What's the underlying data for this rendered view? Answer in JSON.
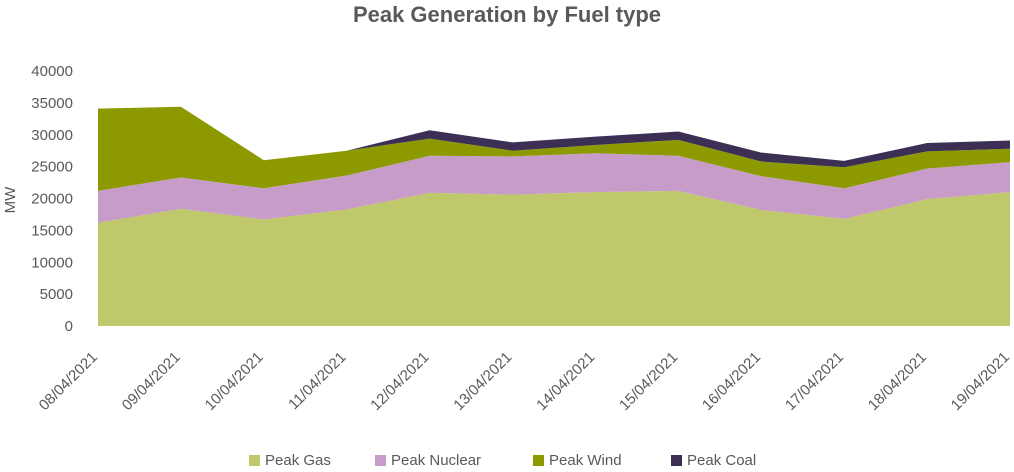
{
  "chart_data": {
    "type": "area",
    "stacked": true,
    "title": "Peak Generation by Fuel type",
    "xlabel": "",
    "ylabel": "MW",
    "ylim": [
      0,
      40000
    ],
    "yticks": [
      0,
      5000,
      10000,
      15000,
      20000,
      25000,
      30000,
      35000,
      40000
    ],
    "categories": [
      "08/04/2021",
      "09/04/2021",
      "10/04/2021",
      "11/04/2021",
      "12/04/2021",
      "13/04/2021",
      "14/04/2021",
      "15/04/2021",
      "16/04/2021",
      "17/04/2021",
      "18/04/2021",
      "19/04/2021"
    ],
    "grid": false,
    "legend_position": "bottom",
    "series": [
      {
        "name": "Peak Gas",
        "color": "#bfc86a",
        "values": [
          16200,
          18400,
          16700,
          18300,
          20900,
          20600,
          21000,
          21200,
          18200,
          16800,
          19900,
          21000
        ]
      },
      {
        "name": "Peak Nuclear",
        "color": "#c79cc8",
        "values": [
          5000,
          4900,
          4900,
          5300,
          5800,
          6000,
          6100,
          5500,
          5300,
          4800,
          4800,
          4700
        ]
      },
      {
        "name": "Peak Wind",
        "color": "#8c9a00",
        "values": [
          12900,
          11100,
          4400,
          3900,
          2700,
          900,
          1300,
          2500,
          2300,
          3300,
          2700,
          2100
        ]
      },
      {
        "name": "Peak Coal",
        "color": "#3b2f54",
        "values": [
          0,
          0,
          0,
          0,
          1300,
          1300,
          1300,
          1300,
          1400,
          1000,
          1300,
          1300
        ]
      }
    ]
  }
}
